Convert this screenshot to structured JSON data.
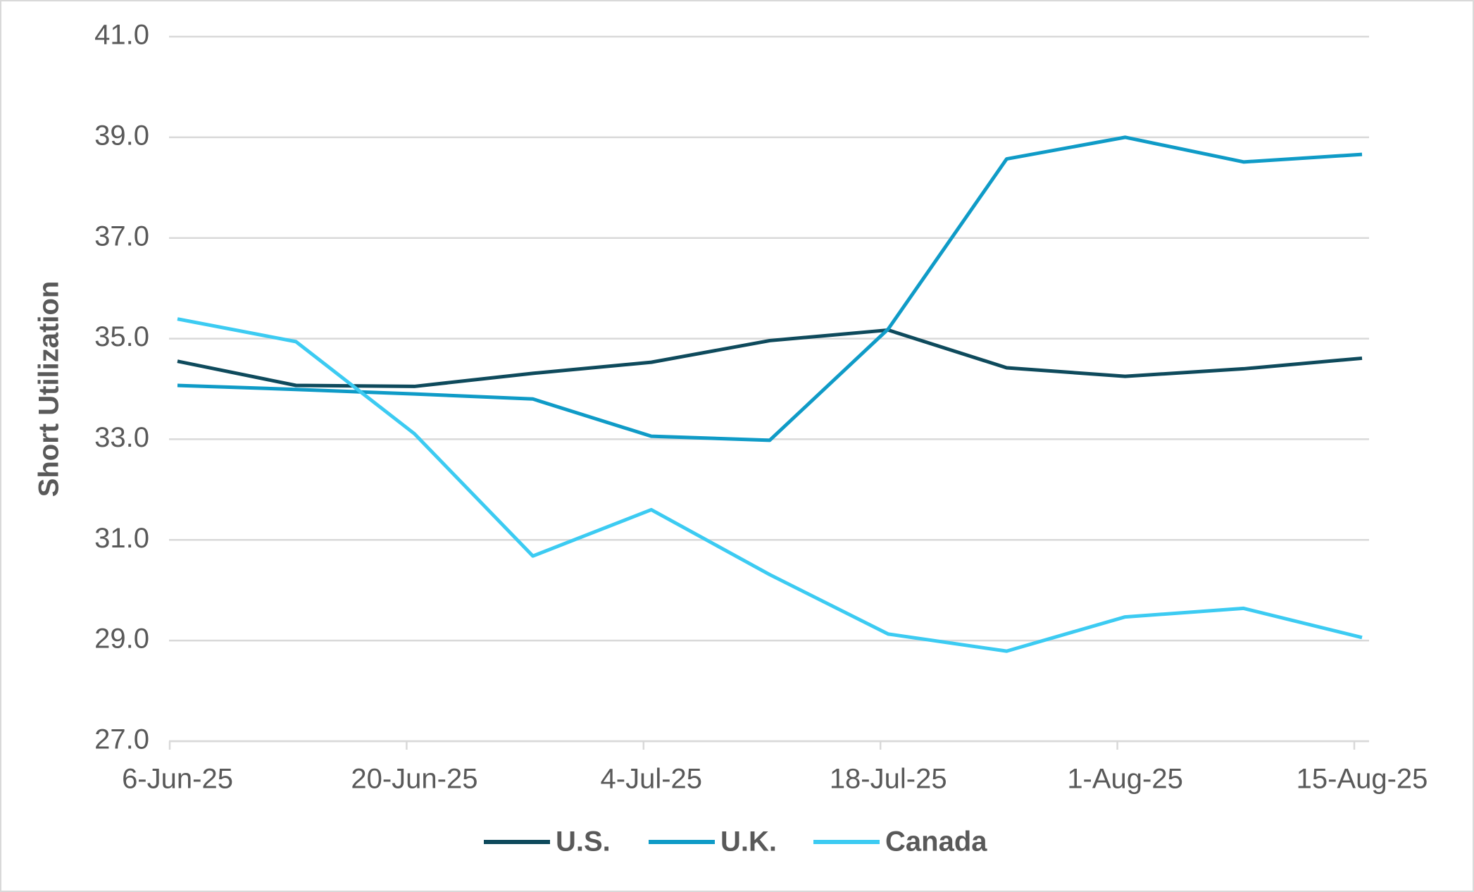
{
  "chart_data": {
    "type": "line",
    "y_label": "Short Utilization",
    "categories": [
      "6-Jun-25",
      null,
      "20-Jun-25",
      null,
      "4-Jul-25",
      null,
      "18-Jul-25",
      null,
      "1-Aug-25",
      null,
      "15-Aug-25"
    ],
    "series": [
      {
        "name": "U.S.",
        "color": "#0e4a5c",
        "values": [
          34.55,
          34.07,
          34.05,
          34.31,
          34.53,
          34.96,
          35.17,
          34.42,
          34.25,
          34.4,
          34.61
        ]
      },
      {
        "name": "U.K.",
        "color": "#0f9bc7",
        "values": [
          34.07,
          33.99,
          33.9,
          33.8,
          33.06,
          32.98,
          35.19,
          38.57,
          39.0,
          38.51,
          38.66
        ]
      },
      {
        "name": "Canada",
        "color": "#3ccbf2",
        "values": [
          35.39,
          34.94,
          33.11,
          30.68,
          31.6,
          30.31,
          29.13,
          28.79,
          29.47,
          29.64,
          29.06
        ]
      }
    ],
    "ylim": [
      27,
      41
    ],
    "yticks": [
      {
        "value": 27,
        "label": "27.0"
      },
      {
        "value": 29,
        "label": "29.0"
      },
      {
        "value": 31,
        "label": "31.0"
      },
      {
        "value": 33,
        "label": "33.0"
      },
      {
        "value": 35,
        "label": "35.0"
      },
      {
        "value": 37,
        "label": "37.0"
      },
      {
        "value": 39,
        "label": "39.0"
      },
      {
        "value": 41,
        "label": "41.0"
      }
    ],
    "grid": true,
    "legend": "bottom"
  }
}
